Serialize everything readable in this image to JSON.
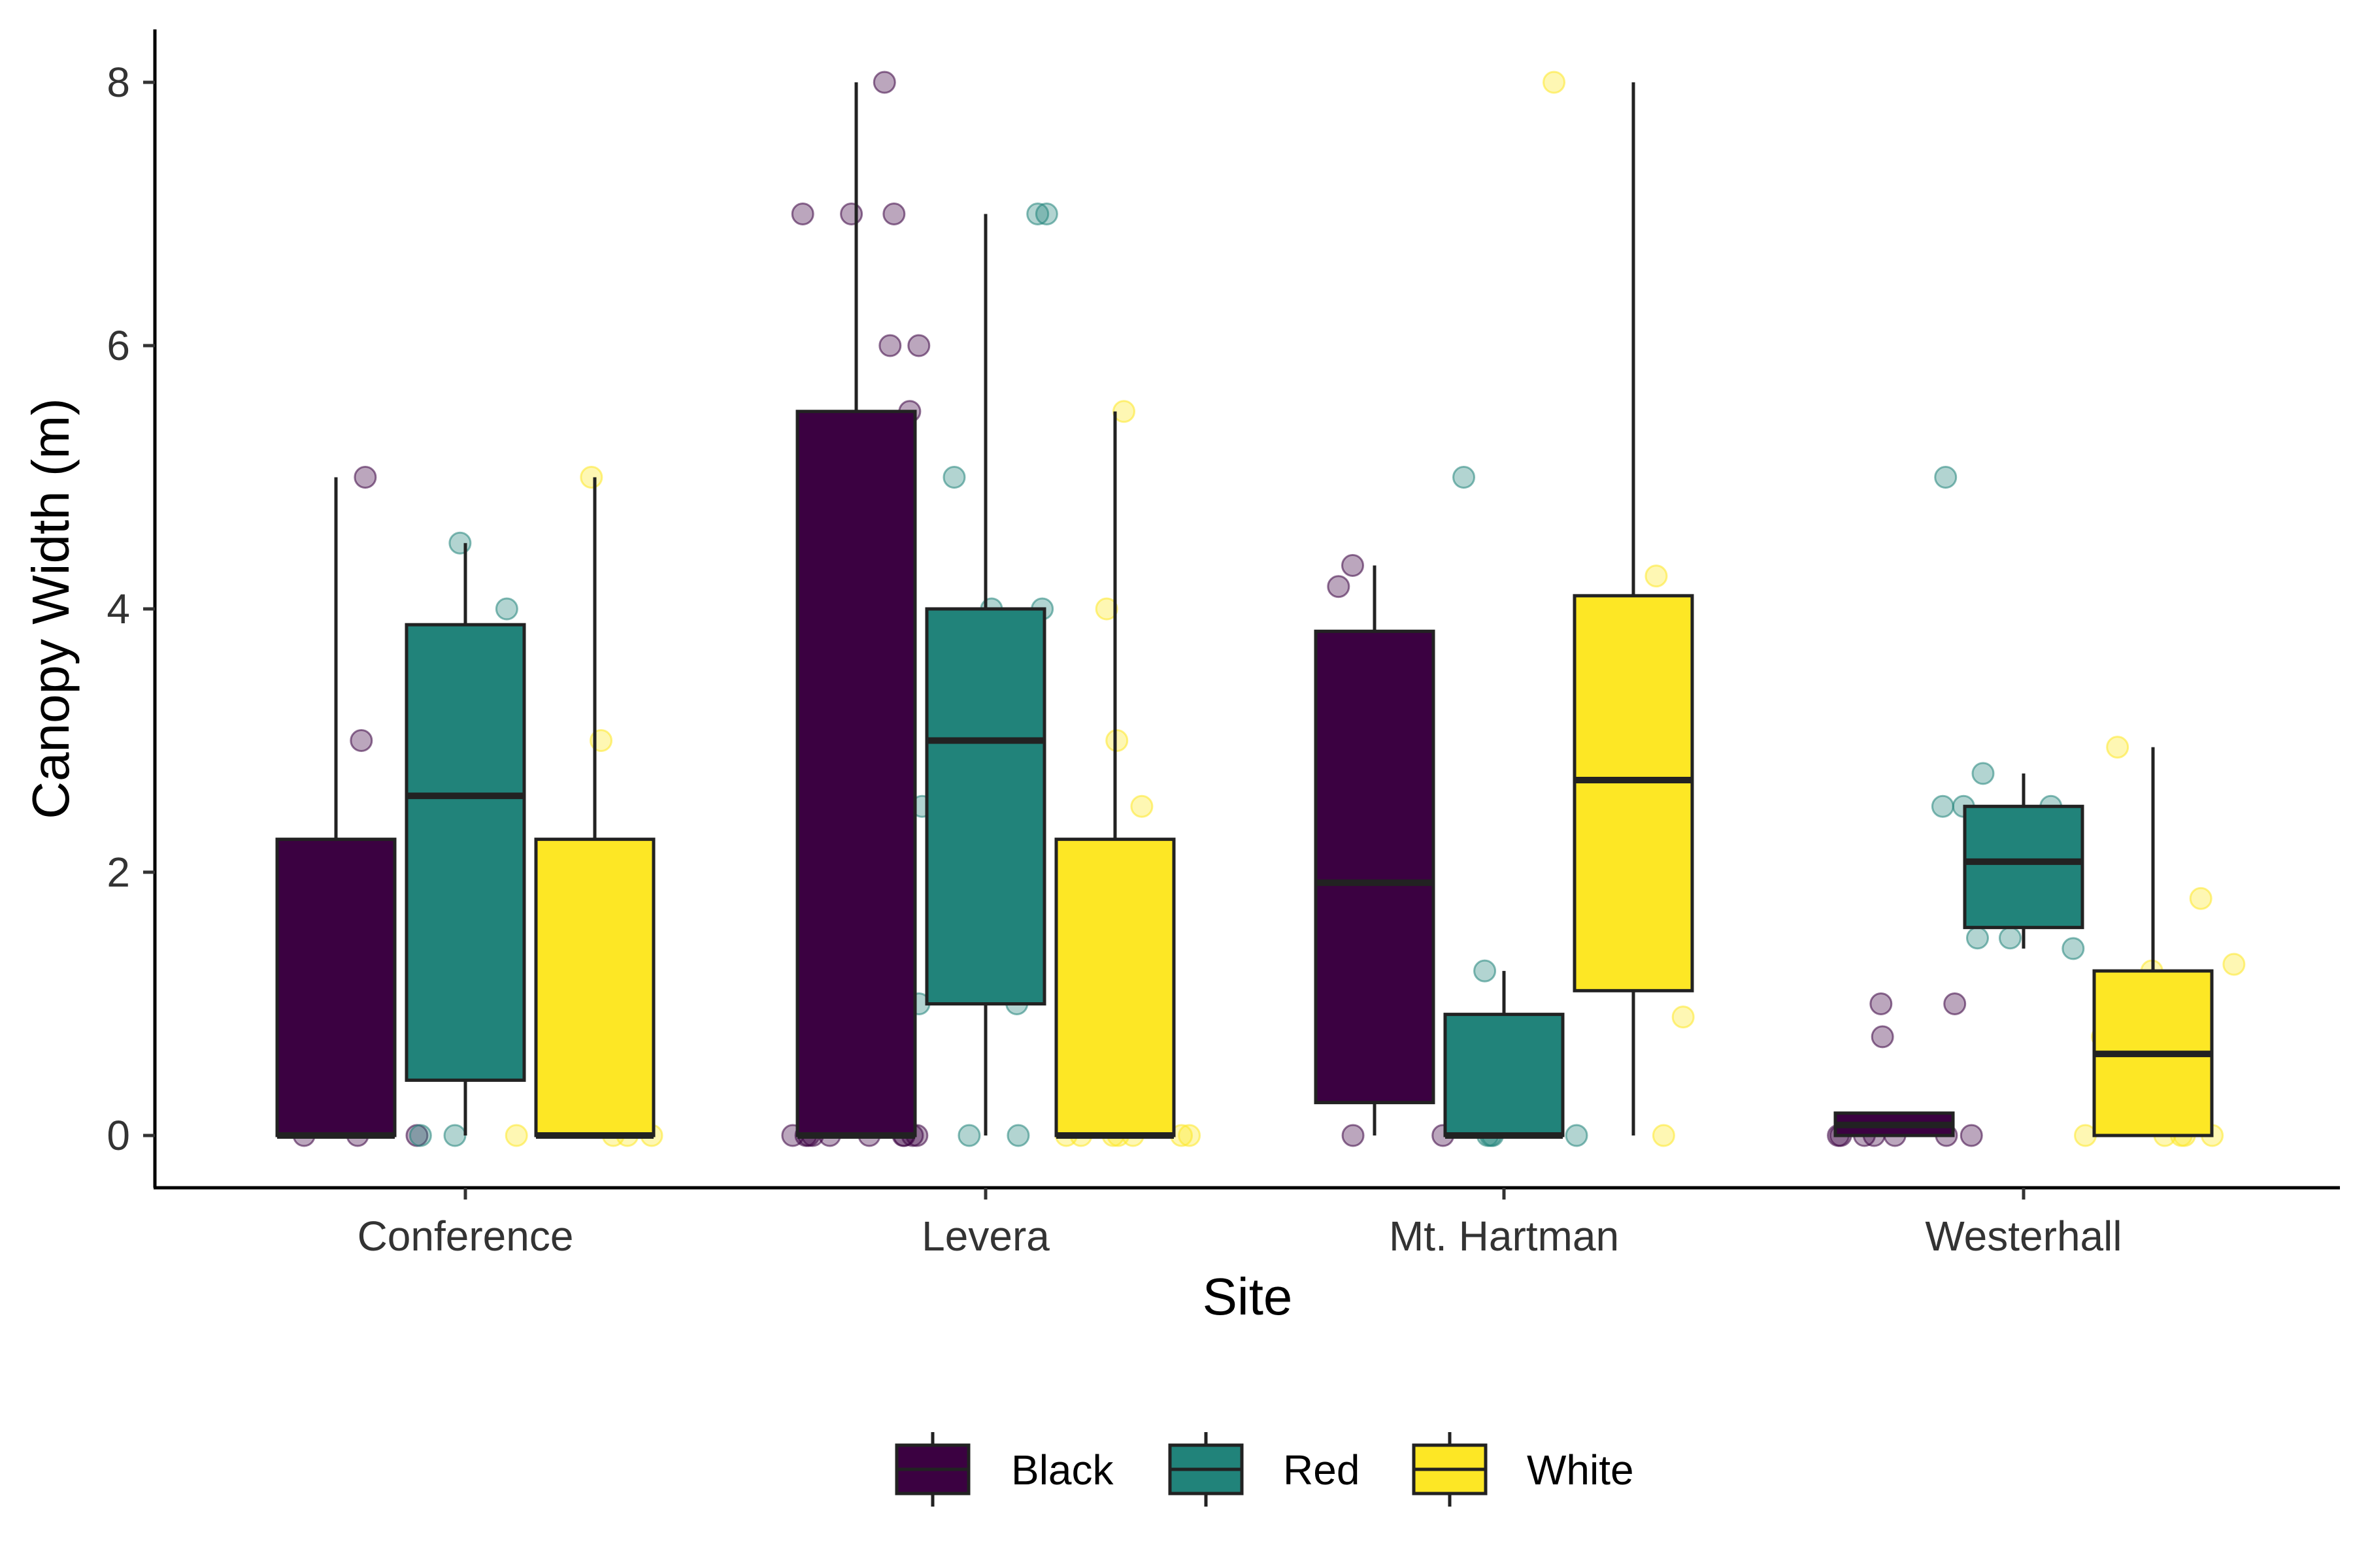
{
  "chart_data": {
    "type": "boxplot",
    "xlabel": "Site",
    "ylabel": "Canopy Width (m)",
    "ylim": [
      -0.4,
      8.4
    ],
    "y_ticks": [
      0,
      2,
      4,
      6,
      8
    ],
    "grid": false,
    "legend_position": "bottom",
    "categories": [
      "Conference",
      "Levera",
      "Mt. Hartman",
      "Westerhall"
    ],
    "series": [
      {
        "name": "Black",
        "color": "#3B0141",
        "boxes": [
          {
            "min": 0,
            "q1": 0,
            "median": 0,
            "q3": 2.25,
            "max": 5
          },
          {
            "min": 0,
            "q1": 0,
            "median": 0,
            "q3": 5.5,
            "max": 8
          },
          {
            "min": 0,
            "q1": 0.25,
            "median": 1.92,
            "q3": 3.83,
            "max": 4.33
          },
          {
            "min": 0,
            "q1": 0,
            "median": 0.08,
            "q3": 0.17,
            "max": 0.17
          }
        ],
        "points": [
          [
            3,
            0,
            0,
            0,
            5
          ],
          [
            8,
            7,
            6,
            6,
            5.5,
            4.5,
            0,
            0,
            0,
            0,
            0,
            0,
            0,
            0,
            0,
            0,
            7,
            7
          ],
          [
            4.33,
            4.17,
            0,
            0
          ],
          [
            1,
            1,
            0.75,
            0,
            0,
            0,
            0,
            0,
            0,
            0
          ]
        ]
      },
      {
        "name": "Red",
        "color": "#21837A",
        "boxes": [
          {
            "min": 0,
            "q1": 0.42,
            "median": 2.58,
            "q3": 3.88,
            "max": 4.5
          },
          {
            "min": 0,
            "q1": 1,
            "median": 3,
            "q3": 4,
            "max": 7
          },
          {
            "min": 0,
            "q1": 0,
            "median": 0,
            "q3": 0.92,
            "max": 1.25
          },
          {
            "min": 1.42,
            "q1": 1.58,
            "median": 2.08,
            "q3": 2.5,
            "max": 2.75
          }
        ],
        "points": [
          [
            4.5,
            4,
            0,
            0
          ],
          [
            7,
            7,
            5,
            4,
            4,
            3,
            2.5,
            2,
            1,
            1,
            0,
            0
          ],
          [
            5,
            1.25,
            0,
            0,
            0,
            0
          ],
          [
            5,
            2.75,
            2.5,
            2.5,
            2.5,
            2,
            1.67,
            1.5,
            1.5,
            1.42
          ]
        ]
      },
      {
        "name": "White",
        "color": "#FDE725",
        "boxes": [
          {
            "min": 0,
            "q1": 0,
            "median": 0,
            "q3": 2.25,
            "max": 5
          },
          {
            "min": 0,
            "q1": 0,
            "median": 0,
            "q3": 2.25,
            "max": 5.5
          },
          {
            "min": 0,
            "q1": 1.1,
            "median": 2.7,
            "q3": 4.1,
            "max": 8
          },
          {
            "min": 0,
            "q1": 0,
            "median": 0.62,
            "q3": 1.25,
            "max": 2.95
          }
        ],
        "points": [
          [
            5,
            3,
            0,
            0,
            0,
            0
          ],
          [
            5.5,
            4,
            3,
            2.5,
            0,
            0,
            0,
            0,
            0,
            0,
            0
          ],
          [
            8,
            4.25,
            3.67,
            1.75,
            0.9,
            0
          ],
          [
            2.95,
            1.8,
            1.3,
            1.25,
            0.75,
            0.5,
            0,
            0,
            0,
            0,
            0
          ]
        ]
      }
    ]
  }
}
